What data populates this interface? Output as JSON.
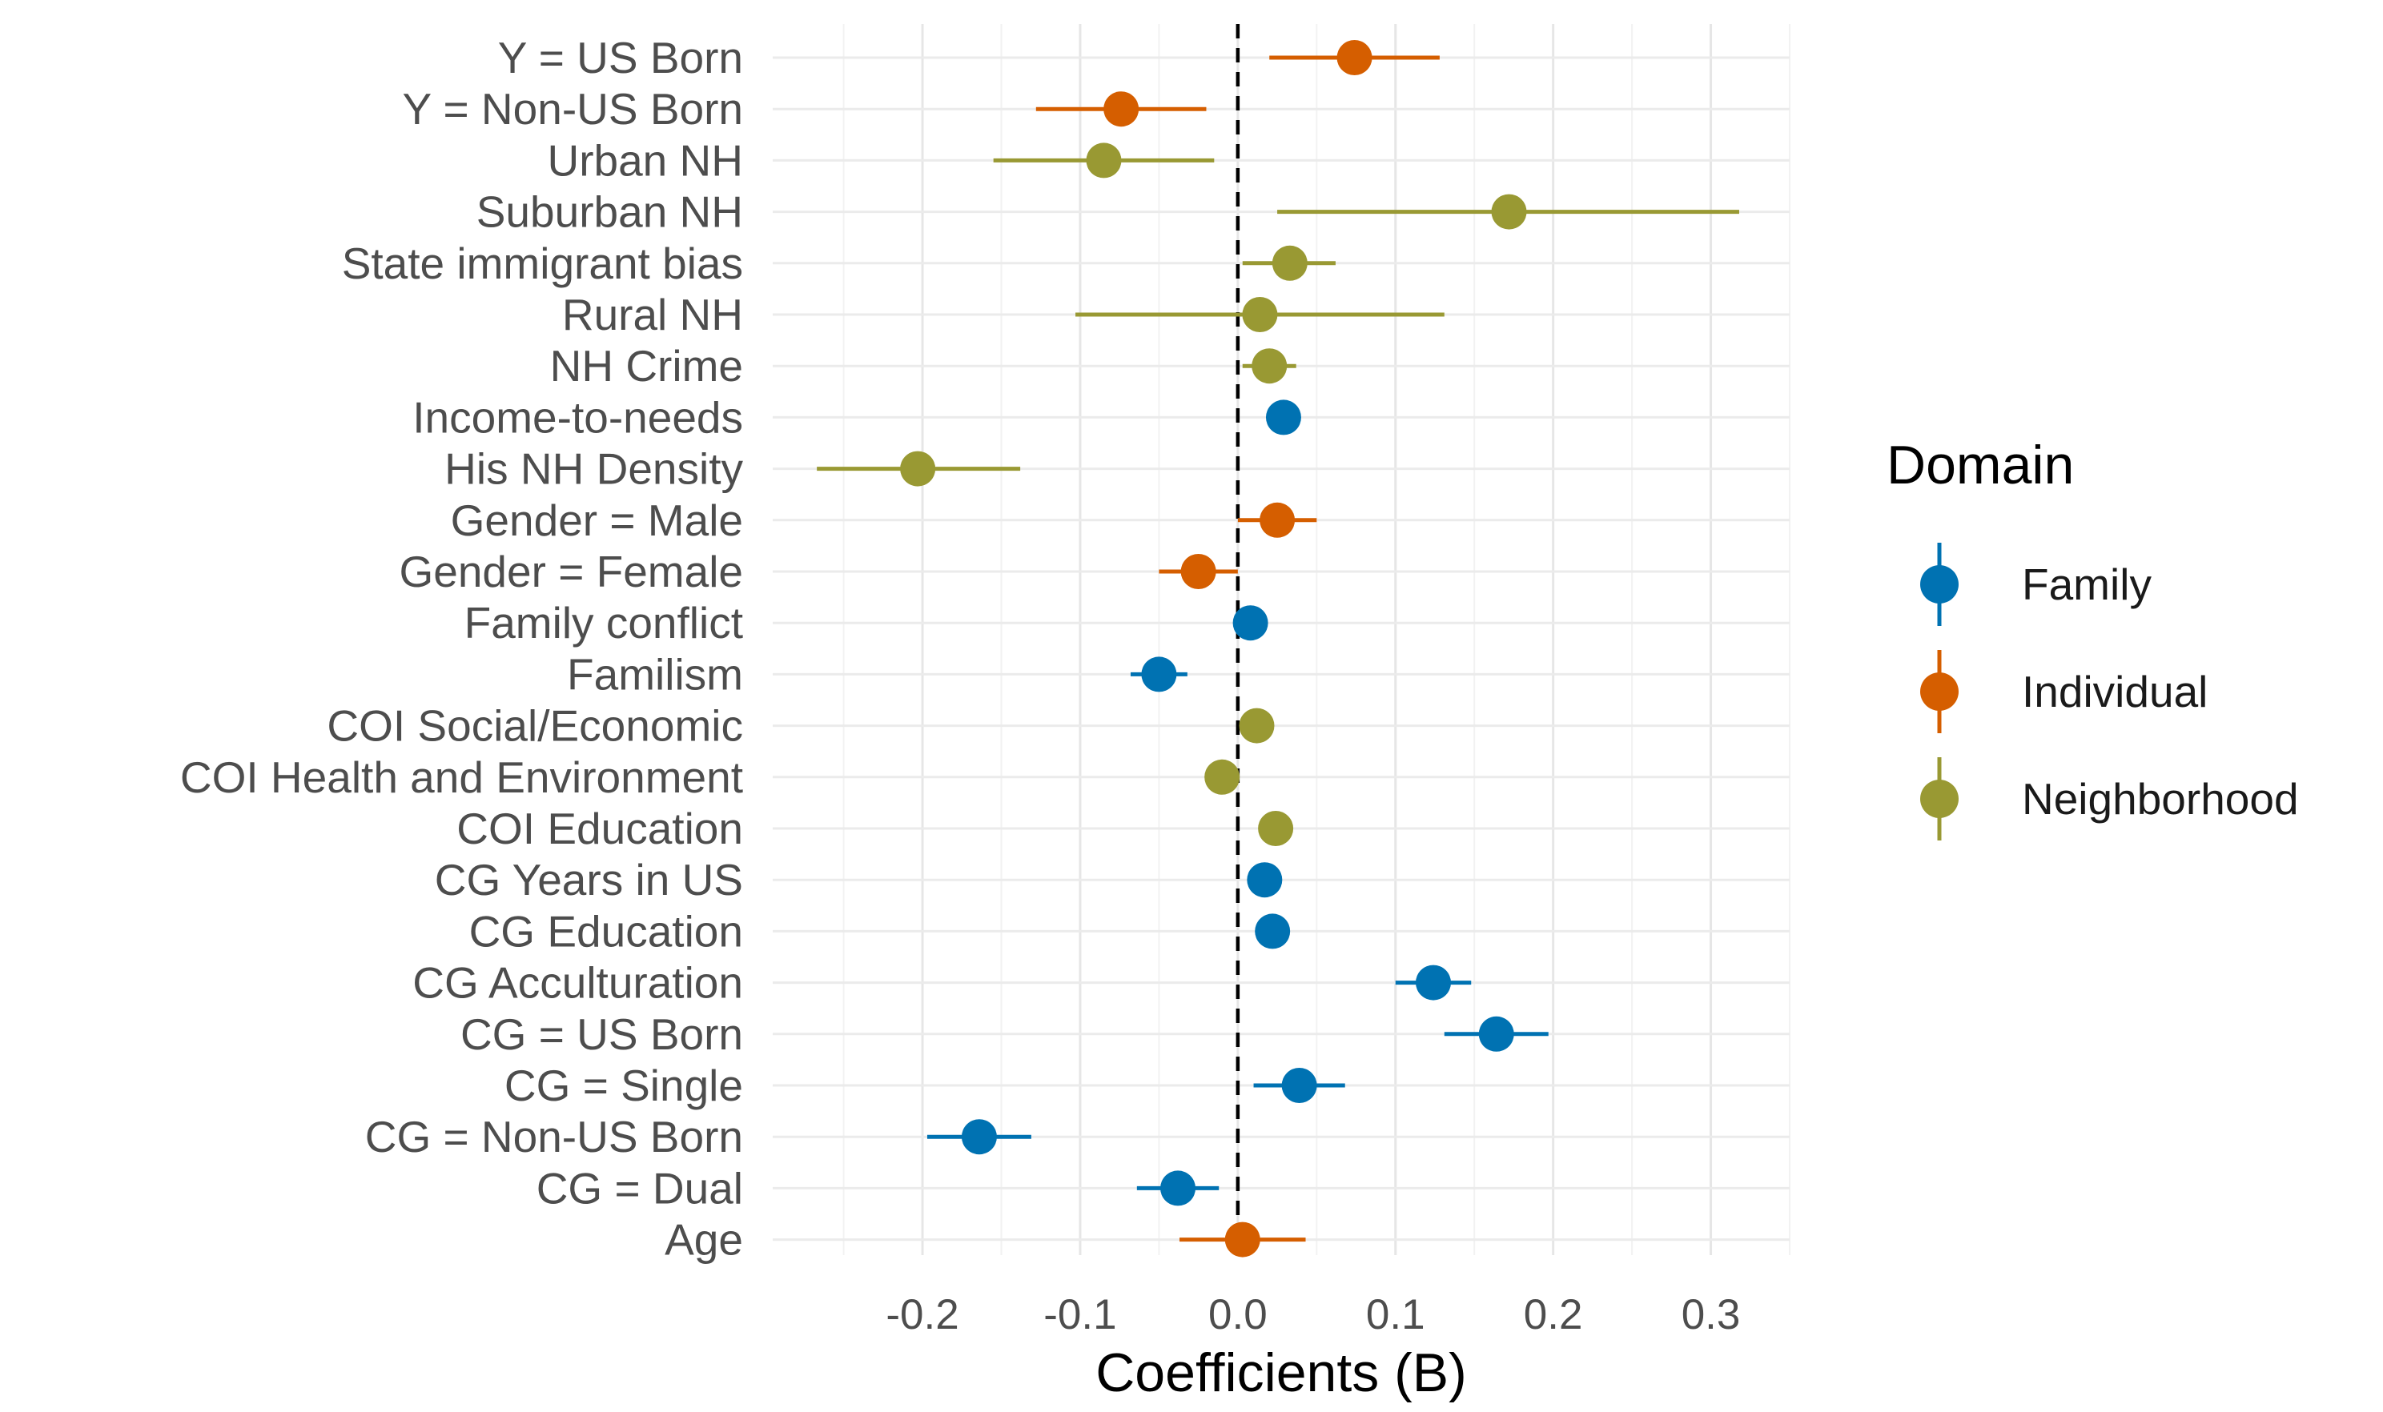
{
  "chart_data": {
    "type": "scatter",
    "subtype": "coefficient-plot-with-error-bars",
    "title": "",
    "xlabel": "Coefficients (B)",
    "ylabel": "",
    "xlim": [
      -0.295,
      0.35
    ],
    "x_ticks": [
      -0.2,
      -0.1,
      0.0,
      0.1,
      0.2,
      0.3
    ],
    "x_tick_labels": [
      "-0.2",
      "-0.1",
      "0.0",
      "0.1",
      "0.2",
      "0.3"
    ],
    "reference_line": {
      "x": 0,
      "style": "dashed"
    },
    "grid": true,
    "legend": {
      "title": "Domain",
      "placement": "right",
      "entries": [
        {
          "name": "Family",
          "color": "#0072B2"
        },
        {
          "name": "Individual",
          "color": "#D55E00"
        },
        {
          "name": "Neighborhood",
          "color": "#999933"
        }
      ]
    },
    "categories": [
      "Y = US Born",
      "Y = Non-US Born",
      "Urban NH",
      "Suburban NH",
      "State immigrant bias",
      "Rural NH",
      "NH Crime ",
      "Income-to-needs",
      "His NH Density",
      "Gender = Male",
      "Gender = Female",
      "Family conflict",
      "Familism",
      "COI Social/Economic",
      "COI Health and Environment",
      "COI Education",
      "CG Years in US",
      "CG Education",
      "CG Acculturation",
      "CG = US Born",
      "CG = Single",
      "CG = Non-US Born",
      "CG = Dual",
      "Age"
    ],
    "points": [
      {
        "label": "Y = US Born",
        "domain": "Individual",
        "estimate": 0.074,
        "low": 0.02,
        "high": 0.128
      },
      {
        "label": "Y = Non-US Born",
        "domain": "Individual",
        "estimate": -0.074,
        "low": -0.128,
        "high": -0.02
      },
      {
        "label": "Urban NH",
        "domain": "Neighborhood",
        "estimate": -0.085,
        "low": -0.155,
        "high": -0.015
      },
      {
        "label": "Suburban NH",
        "domain": "Neighborhood",
        "estimate": 0.172,
        "low": 0.025,
        "high": 0.318
      },
      {
        "label": "State immigrant bias",
        "domain": "Neighborhood",
        "estimate": 0.033,
        "low": 0.003,
        "high": 0.062
      },
      {
        "label": "Rural NH",
        "domain": "Neighborhood",
        "estimate": 0.014,
        "low": -0.103,
        "high": 0.131
      },
      {
        "label": "NH Crime ",
        "domain": "Neighborhood",
        "estimate": 0.02,
        "low": 0.003,
        "high": 0.037
      },
      {
        "label": "Income-to-needs",
        "domain": "Family",
        "estimate": 0.029,
        "low": 0.021,
        "high": 0.037
      },
      {
        "label": "His NH Density",
        "domain": "Neighborhood",
        "estimate": -0.203,
        "low": -0.267,
        "high": -0.138
      },
      {
        "label": "Gender = Male",
        "domain": "Individual",
        "estimate": 0.025,
        "low": 0.0,
        "high": 0.05
      },
      {
        "label": "Gender = Female",
        "domain": "Individual",
        "estimate": -0.025,
        "low": -0.05,
        "high": 0.0
      },
      {
        "label": "Family conflict",
        "domain": "Family",
        "estimate": 0.008,
        "low": 0.0,
        "high": 0.018
      },
      {
        "label": "Familism",
        "domain": "Family",
        "estimate": -0.05,
        "low": -0.068,
        "high": -0.032
      },
      {
        "label": "COI Social/Economic",
        "domain": "Neighborhood",
        "estimate": 0.012,
        "low": 0.004,
        "high": 0.02
      },
      {
        "label": "COI Health and Environment",
        "domain": "Neighborhood",
        "estimate": -0.01,
        "low": -0.018,
        "high": -0.002
      },
      {
        "label": "COI Education",
        "domain": "Neighborhood",
        "estimate": 0.024,
        "low": 0.016,
        "high": 0.032
      },
      {
        "label": "CG Years in US",
        "domain": "Family",
        "estimate": 0.017,
        "low": 0.01,
        "high": 0.024
      },
      {
        "label": "CG Education",
        "domain": "Family",
        "estimate": 0.022,
        "low": 0.015,
        "high": 0.029
      },
      {
        "label": "CG Acculturation",
        "domain": "Family",
        "estimate": 0.124,
        "low": 0.1,
        "high": 0.148
      },
      {
        "label": "CG = US Born",
        "domain": "Family",
        "estimate": 0.164,
        "low": 0.131,
        "high": 0.197
      },
      {
        "label": "CG = Single",
        "domain": "Family",
        "estimate": 0.039,
        "low": 0.01,
        "high": 0.068
      },
      {
        "label": "CG = Non-US Born",
        "domain": "Family",
        "estimate": -0.164,
        "low": -0.197,
        "high": -0.131
      },
      {
        "label": "CG = Dual",
        "domain": "Family",
        "estimate": -0.038,
        "low": -0.064,
        "high": -0.012
      },
      {
        "label": "Age",
        "domain": "Individual",
        "estimate": 0.003,
        "low": -0.037,
        "high": 0.043
      }
    ]
  }
}
